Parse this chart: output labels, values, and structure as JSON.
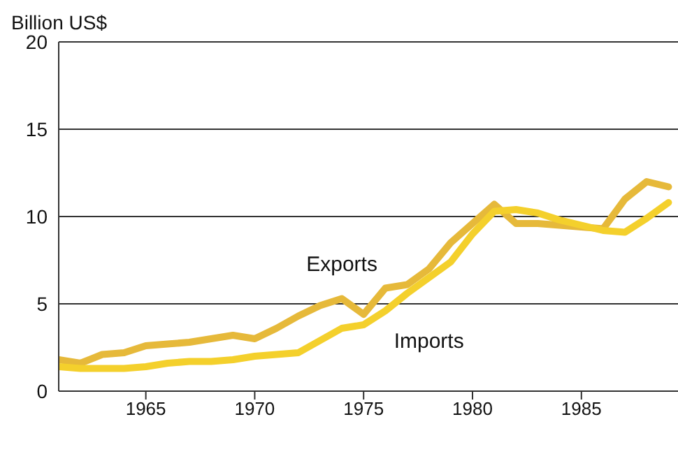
{
  "chart_data": {
    "type": "line",
    "ylabel": "Billion US$",
    "x": [
      1961,
      1962,
      1963,
      1964,
      1965,
      1966,
      1967,
      1968,
      1969,
      1970,
      1971,
      1972,
      1973,
      1974,
      1975,
      1976,
      1977,
      1978,
      1979,
      1980,
      1981,
      1982,
      1983,
      1984,
      1985,
      1986,
      1987,
      1988,
      1989
    ],
    "series": [
      {
        "name": "Exports",
        "color": "#e6b93a",
        "values": [
          1.8,
          1.6,
          2.1,
          2.2,
          2.6,
          2.7,
          2.8,
          3.0,
          3.2,
          3.0,
          3.6,
          4.3,
          4.9,
          5.3,
          4.4,
          5.9,
          6.1,
          7.0,
          8.5,
          9.6,
          10.7,
          9.6,
          9.6,
          9.5,
          9.4,
          9.3,
          11.0,
          12.0,
          11.7
        ]
      },
      {
        "name": "Imports",
        "color": "#f4d02c",
        "values": [
          1.4,
          1.3,
          1.3,
          1.3,
          1.4,
          1.6,
          1.7,
          1.7,
          1.8,
          2.0,
          2.1,
          2.2,
          2.9,
          3.6,
          3.8,
          4.6,
          5.6,
          6.5,
          7.4,
          9.0,
          10.3,
          10.4,
          10.2,
          9.8,
          9.5,
          9.2,
          9.1,
          9.9,
          10.8
        ]
      }
    ],
    "xlim": [
      1961,
      1989.5
    ],
    "xticks": [
      1965,
      1970,
      1975,
      1980,
      1985
    ],
    "ylim": [
      0,
      20
    ],
    "yticks": [
      0,
      5,
      10,
      15,
      20
    ],
    "grid": "y",
    "legend": false,
    "marker": "none",
    "line_style": "solid"
  }
}
